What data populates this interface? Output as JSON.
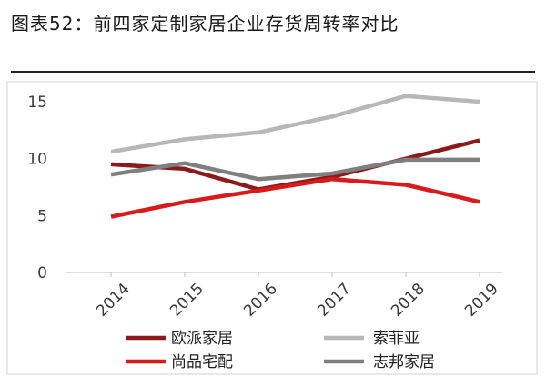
{
  "figure": {
    "title": "图表52：前四家定制家居企业存货周转率对比"
  },
  "chart_data": {
    "type": "line",
    "x": [
      "2014",
      "2015",
      "2016",
      "2017",
      "2018",
      "2019"
    ],
    "ylim": [
      0,
      15
    ],
    "yticks": [
      0,
      5,
      10,
      15
    ],
    "grid": false,
    "legend_position": "bottom",
    "series": [
      {
        "name": "欧派家居",
        "color": "#8b1a1a",
        "values": [
          9.5,
          9.1,
          7.3,
          8.4,
          10.0,
          11.6
        ]
      },
      {
        "name": "索菲亚",
        "color": "#b7b7b7",
        "values": [
          10.6,
          11.7,
          12.3,
          13.7,
          15.5,
          15.0
        ]
      },
      {
        "name": "尚品宅配",
        "color": "#d91a1a",
        "values": [
          4.9,
          6.2,
          7.2,
          8.2,
          7.7,
          6.2
        ]
      },
      {
        "name": "志邦家居",
        "color": "#7f7f7f",
        "values": [
          8.6,
          9.6,
          8.2,
          8.7,
          9.9,
          9.9
        ]
      }
    ]
  }
}
